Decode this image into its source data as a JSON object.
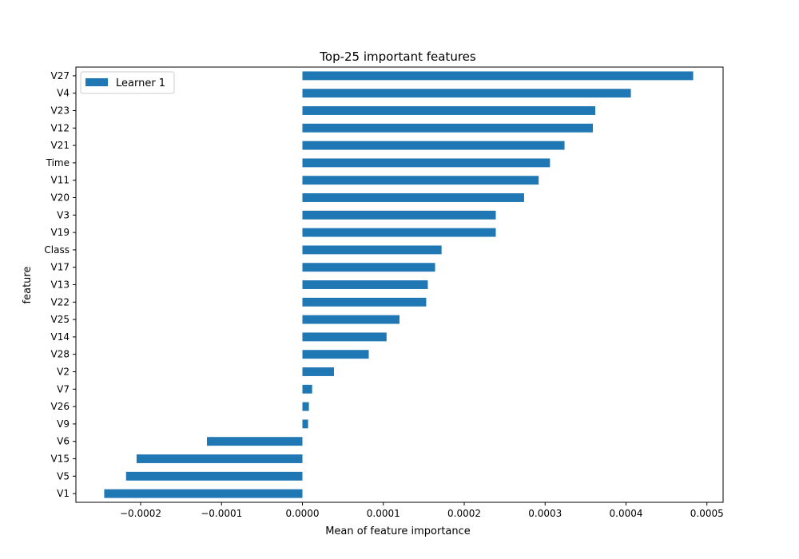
{
  "chart_data": {
    "type": "bar",
    "orientation": "horizontal",
    "title": "Top-25 important features",
    "xlabel": "Mean of feature importance",
    "ylabel": "feature",
    "xlim": [
      -0.00028,
      0.00052
    ],
    "xticks": [
      -0.0002,
      -0.0001,
      0.0,
      0.0001,
      0.0002,
      0.0003,
      0.0004,
      0.0005
    ],
    "xtick_labels": [
      "−0.0002",
      "−0.0001",
      "0.0000",
      "0.0001",
      "0.0002",
      "0.0003",
      "0.0004",
      "0.0005"
    ],
    "grid": false,
    "legend": {
      "placement": "top-left",
      "entries": [
        "Learner 1"
      ]
    },
    "categories": [
      "V27",
      "V4",
      "V23",
      "V12",
      "V21",
      "Time",
      "V11",
      "V20",
      "V3",
      "V19",
      "Class",
      "V17",
      "V13",
      "V22",
      "V25",
      "V14",
      "V28",
      "V2",
      "V7",
      "V26",
      "V9",
      "V6",
      "V15",
      "V5",
      "V1"
    ],
    "series": [
      {
        "name": "Learner 1",
        "color": "#1f77b4",
        "values": [
          0.000483,
          0.000406,
          0.000362,
          0.000359,
          0.000324,
          0.000306,
          0.000292,
          0.000274,
          0.000239,
          0.000239,
          0.000172,
          0.000164,
          0.000155,
          0.000153,
          0.00012,
          0.000104,
          8.2e-05,
          3.9e-05,
          1.2e-05,
          8e-06,
          7e-06,
          -0.000118,
          -0.000205,
          -0.000218,
          -0.000245
        ]
      }
    ]
  }
}
